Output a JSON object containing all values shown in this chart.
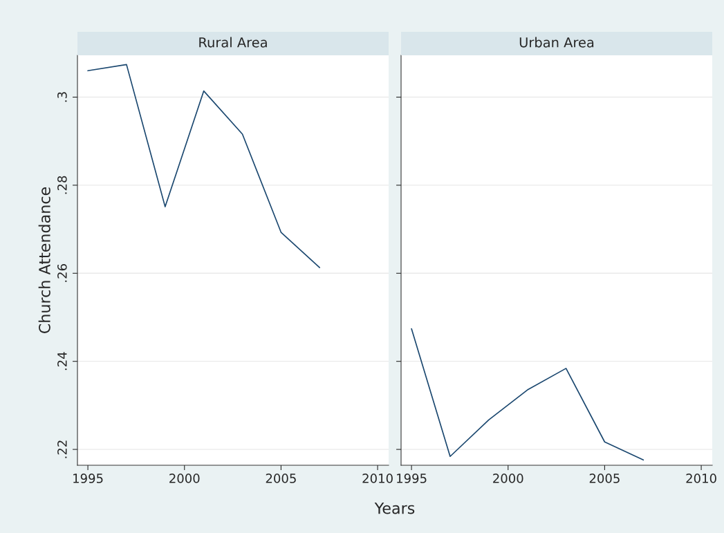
{
  "chart_data": [
    {
      "type": "line",
      "title": "Rural Area",
      "ylabel": "Church Attendance",
      "xlabel": "Years",
      "x": [
        1995,
        1997,
        1999,
        2001,
        2003,
        2005,
        2007
      ],
      "series": [
        {
          "color": "#1a476f",
          "values": [
            0.306,
            0.3074,
            0.2751,
            0.3014,
            0.2916,
            0.2693,
            0.2613
          ]
        }
      ],
      "xlim": [
        1994.46,
        2010.57
      ],
      "xticks": [
        1995,
        2000,
        2005,
        2010
      ],
      "ylim": [
        0.2164,
        0.3095
      ],
      "yticks": [
        {
          "value": 0.22,
          "label": ".22"
        },
        {
          "value": 0.24,
          "label": ".24"
        },
        {
          "value": 0.26,
          "label": ".26"
        },
        {
          "value": 0.28,
          "label": ".28"
        },
        {
          "value": 0.3,
          "label": ".3"
        }
      ],
      "grid": "y"
    },
    {
      "type": "line",
      "title": "Urban Area",
      "x": [
        1995,
        1997,
        1999,
        2001,
        2003,
        2005,
        2007
      ],
      "series": [
        {
          "color": "#1a476f",
          "values": [
            0.2474,
            0.2184,
            0.2267,
            0.2335,
            0.2384,
            0.2217,
            0.2176
          ]
        }
      ],
      "xlim": [
        1994.46,
        2010.57
      ],
      "xticks": [
        1995,
        2000,
        2005,
        2010
      ],
      "ylim": [
        0.2164,
        0.3095
      ],
      "yticks": [
        {
          "value": 0.22,
          "label": null
        },
        {
          "value": 0.24,
          "label": null
        },
        {
          "value": 0.26,
          "label": null
        },
        {
          "value": 0.28,
          "label": null
        },
        {
          "value": 0.3,
          "label": null
        }
      ],
      "grid": "y",
      "tick_labels": "x"
    }
  ]
}
